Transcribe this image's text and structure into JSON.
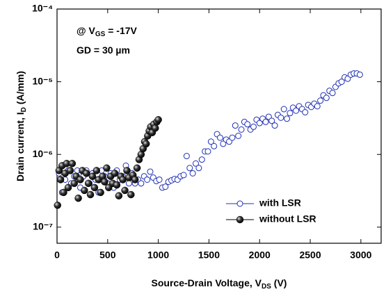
{
  "chart_data": {
    "type": "scatter",
    "annotations": [
      {
        "text": "@ V",
        "sub": "GS",
        "rest": " = -17V"
      },
      {
        "text": "GD = 30 µm"
      }
    ],
    "xlabel": {
      "text": "Source-Drain Voltage, V",
      "sub": "DS",
      "rest": " (V)"
    },
    "ylabel": {
      "text": "Drain current, I",
      "sub": "D",
      "rest": " (A/mm)"
    },
    "xlim": [
      0,
      3200
    ],
    "xticks": [
      0,
      500,
      1000,
      1500,
      2000,
      2500,
      3000
    ],
    "ylim": [
      6e-08,
      0.0001
    ],
    "ylog": true,
    "yticks": [
      {
        "value": 1e-07,
        "label": "10⁻⁷"
      },
      {
        "value": 1e-06,
        "label": "10⁻⁶"
      },
      {
        "value": 1e-05,
        "label": "10⁻⁵"
      },
      {
        "value": 0.0001,
        "label": "10⁻⁴"
      }
    ],
    "legend": "lower right",
    "series": [
      {
        "name": "with LSR",
        "color": "#1f2fb4",
        "marker": "open-circle",
        "x": [
          20,
          50,
          80,
          110,
          140,
          170,
          200,
          230,
          260,
          290,
          320,
          350,
          380,
          410,
          440,
          470,
          500,
          530,
          560,
          590,
          620,
          650,
          680,
          710,
          740,
          770,
          800,
          830,
          860,
          890,
          920,
          950,
          980,
          1010,
          1040,
          1070,
          1100,
          1130,
          1160,
          1190,
          1220,
          1250,
          1280,
          1310,
          1340,
          1370,
          1400,
          1430,
          1460,
          1490,
          1520,
          1550,
          1580,
          1610,
          1640,
          1670,
          1700,
          1730,
          1760,
          1790,
          1820,
          1850,
          1880,
          1910,
          1940,
          1970,
          2000,
          2030,
          2060,
          2090,
          2120,
          2150,
          2180,
          2210,
          2240,
          2270,
          2300,
          2330,
          2360,
          2390,
          2420,
          2450,
          2480,
          2510,
          2540,
          2570,
          2600,
          2630,
          2660,
          2690,
          2720,
          2750,
          2780,
          2810,
          2840,
          2870,
          2900,
          2930,
          2960,
          2990
        ],
        "values": [
          5.5e-07,
          3e-07,
          4.5e-07,
          6e-07,
          4e-07,
          5e-07,
          6e-07,
          3.5e-07,
          5e-07,
          6e-07,
          4e-07,
          5.5e-07,
          4.5e-07,
          3e-07,
          6e-07,
          5e-07,
          4e-07,
          5.5e-07,
          3.5e-07,
          6e-07,
          4.5e-07,
          5e-07,
          7e-07,
          4e-07,
          5.5e-07,
          4e-07,
          4.5e-07,
          4e-07,
          5e-07,
          4.5e-07,
          5.8e-07,
          4.8e-07,
          4.3e-07,
          4.5e-07,
          3.5e-07,
          3.6e-07,
          4.2e-07,
          4.4e-07,
          4.6e-07,
          4.5e-07,
          5e-07,
          5.2e-07,
          9.5e-07,
          6.5e-07,
          5.5e-07,
          7.5e-07,
          6.5e-07,
          8.5e-07,
          1.1e-06,
          1.1e-06,
          1.5e-06,
          1.3e-06,
          1.9e-06,
          1.7e-06,
          1.4e-06,
          1.6e-06,
          1.5e-06,
          1.7e-06,
          2.5e-06,
          1.8e-06,
          2.2e-06,
          2.8e-06,
          2.6e-06,
          2.2e-06,
          2.4e-06,
          3e-06,
          2.7e-06,
          3.1e-06,
          2.8e-06,
          3.3e-06,
          2.9e-06,
          2.5e-06,
          3.5e-06,
          3.2e-06,
          4.2e-06,
          3.1e-06,
          3.7e-06,
          4.4e-06,
          4e-06,
          4.6e-06,
          4.2e-06,
          3.8e-06,
          4.8e-06,
          4.5e-06,
          5e-06,
          4.6e-06,
          5.5e-06,
          6.5e-06,
          6e-06,
          7.5e-06,
          7e-06,
          8.5e-06,
          9.5e-06,
          1e-05,
          1.15e-05,
          1.1e-05,
          1.25e-05,
          1.3e-05,
          1.3e-05,
          1.25e-05
        ]
      },
      {
        "name": "without LSR",
        "color": "#000000",
        "marker": "ball",
        "x": [
          5,
          20,
          35,
          50,
          65,
          80,
          95,
          110,
          130,
          150,
          170,
          190,
          210,
          230,
          250,
          270,
          290,
          310,
          330,
          350,
          370,
          390,
          410,
          430,
          450,
          470,
          490,
          510,
          530,
          550,
          570,
          590,
          610,
          630,
          650,
          670,
          690,
          710,
          730,
          750,
          770,
          790,
          810,
          830,
          850,
          865,
          880,
          895,
          910,
          925,
          940,
          955,
          970,
          985,
          1000
        ],
        "values": [
          2e-07,
          6e-07,
          4.5e-07,
          7e-07,
          3e-07,
          5.5e-07,
          7.5e-07,
          3.5e-07,
          6e-07,
          7.5e-07,
          4e-07,
          5e-07,
          2.5e-07,
          4.5e-07,
          6e-07,
          3.2e-07,
          5.5e-07,
          4e-07,
          2.8e-07,
          5e-07,
          3.5e-07,
          6e-07,
          4.5e-07,
          3e-07,
          5e-07,
          4.2e-07,
          6.5e-07,
          3.5e-07,
          5e-07,
          4e-07,
          5.5e-07,
          3.8e-07,
          2.7e-07,
          5e-07,
          4.5e-07,
          3.2e-07,
          6e-07,
          4.8e-07,
          2.8e-07,
          5.2e-07,
          4.5e-07,
          6.5e-07,
          8.5e-07,
          1e-06,
          1.2e-06,
          1.5e-06,
          1.4e-06,
          1.8e-06,
          2.1e-06,
          2.4e-06,
          2e-06,
          2.6e-06,
          2.3e-06,
          2.8e-06,
          3e-06
        ]
      }
    ]
  }
}
